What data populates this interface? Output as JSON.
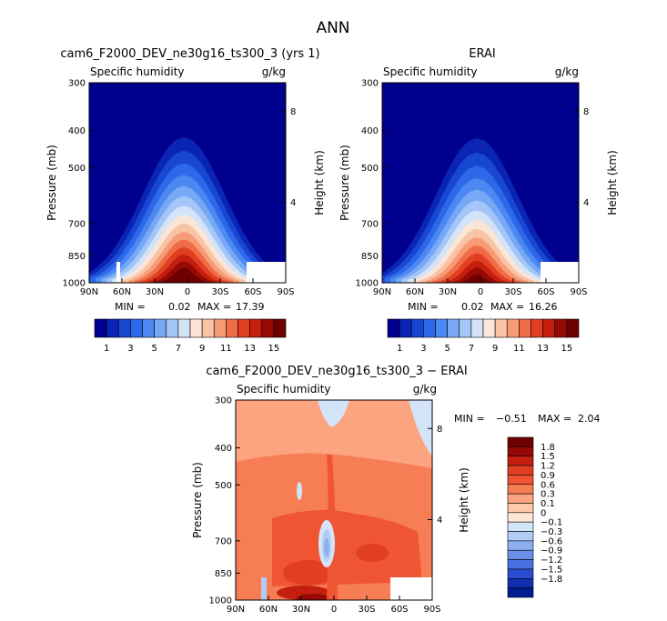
{
  "page_title": "ANN",
  "chart_data": [
    {
      "type": "contour",
      "title": "cam6_F2000_DEV_ne30g16_ts300_3 (yrs 1)",
      "subtitle_left": "Specific humidity",
      "subtitle_right": "g/kg",
      "ylabel": "Pressure (mb)",
      "ylabel_right": "Height (km)",
      "x_ticks": [
        "90N",
        "60N",
        "30N",
        "0",
        "30S",
        "60S",
        "90S"
      ],
      "y_ticks": [
        "300",
        "400",
        "500",
        "700",
        "850",
        "1000"
      ],
      "y_right_ticks": [
        "8",
        "4"
      ],
      "min_label": "MIN =",
      "min_value": "0.02",
      "max_label": "MAX =",
      "max_value": "17.39",
      "colorbar_labels": [
        "1",
        "3",
        "5",
        "7",
        "9",
        "11",
        "13",
        "15"
      ],
      "peak": 17.39
    },
    {
      "type": "contour",
      "title": "ERAI",
      "subtitle_left": "Specific humidity",
      "subtitle_right": "g/kg",
      "ylabel": "Pressure (mb)",
      "ylabel_right": "Height (km)",
      "x_ticks": [
        "90N",
        "60N",
        "30N",
        "0",
        "30S",
        "60S",
        "90S"
      ],
      "y_ticks": [
        "300",
        "400",
        "500",
        "700",
        "850",
        "1000"
      ],
      "y_right_ticks": [
        "8",
        "4"
      ],
      "min_label": "MIN =",
      "min_value": "0.02",
      "max_label": "MAX =",
      "max_value": "16.26",
      "colorbar_labels": [
        "1",
        "3",
        "5",
        "7",
        "9",
        "11",
        "13",
        "15"
      ],
      "peak": 16.26
    },
    {
      "type": "contour",
      "title": "cam6_F2000_DEV_ne30g16_ts300_3 − ERAI",
      "subtitle_left": "Specific humidity",
      "subtitle_right": "g/kg",
      "ylabel": "Pressure (mb)",
      "ylabel_right": "Height (km)",
      "x_ticks": [
        "90N",
        "60N",
        "30N",
        "0",
        "30S",
        "60S",
        "90S"
      ],
      "y_ticks": [
        "300",
        "400",
        "500",
        "700",
        "850",
        "1000"
      ],
      "y_right_ticks": [
        "8",
        "4"
      ],
      "min_label": "MIN =",
      "min_value": "−0.51",
      "max_label": "MAX =",
      "max_value": "2.04",
      "colorbar_labels": [
        "1.8",
        "1.5",
        "1.2",
        "0.9",
        "0.6",
        "0.3",
        "0.1",
        "0",
        "−0.1",
        "−0.3",
        "−0.6",
        "−0.9",
        "−1.2",
        "−1.5",
        "−1.8"
      ]
    }
  ],
  "colors": {
    "abs_scale": [
      "#00008f",
      "#0a24b4",
      "#1848d2",
      "#2d68e8",
      "#4c88f2",
      "#76a8f5",
      "#a4c6f7",
      "#d4e4f8",
      "#fbe5d6",
      "#f9c3a5",
      "#f69b76",
      "#ef6c46",
      "#e23f22",
      "#c41f0e",
      "#960a06",
      "#6e0000"
    ],
    "diff_scale": [
      "#6e0000",
      "#960a06",
      "#c41f0e",
      "#e23f22",
      "#f05533",
      "#f77d54",
      "#fba47f",
      "#fccaa9",
      "#fde6d6",
      "#d4e4f8",
      "#b2cdf5",
      "#8cb0f0",
      "#6a90ea",
      "#4a70e2",
      "#2a4cce",
      "#1030b0",
      "#001c8e"
    ]
  }
}
